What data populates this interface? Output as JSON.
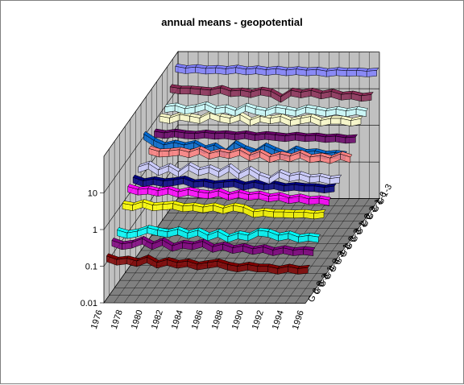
{
  "chart_data": {
    "type": "line",
    "title": "annual means - geopotential",
    "xlabel": "",
    "ylabel": "",
    "zlabel": "",
    "x_tick_labels": [
      "1976",
      "1978",
      "1980",
      "1982",
      "1984",
      "1986",
      "1988",
      "1990",
      "1992",
      "1994",
      "1996"
    ],
    "x": [
      1976,
      1977,
      1978,
      1979,
      1980,
      1981,
      1982,
      1983,
      1984,
      1985,
      1986,
      1987,
      1988,
      1989,
      1990,
      1991,
      1992,
      1993,
      1994,
      1995,
      1996
    ],
    "y_scale": "log",
    "ylim": [
      0.01,
      100
    ],
    "y_tick_labels": [
      "0.01",
      "0.1",
      "1",
      "10"
    ],
    "z_tick_labels": [
      "G 1-3",
      "G 1-6",
      "G 2-1",
      "G 2-3",
      "G 2-6",
      "G 3-1",
      "G 3-3",
      "G 3-6",
      "G 4-1",
      "G 4-3",
      "G 4-6",
      "G 6-1",
      "G 6-3",
      "G 6-6"
    ],
    "grid": true,
    "legend": "none",
    "series": [
      {
        "color": "#8080ff",
        "values": [
          50,
          45,
          48,
          44,
          46,
          43,
          47,
          42,
          45,
          41,
          44,
          40,
          43,
          40,
          42,
          38,
          41,
          39,
          40,
          38,
          40
        ]
      },
      {
        "color": "#8a2b55",
        "values": [
          22,
          20,
          20,
          19,
          18,
          21,
          17,
          18,
          16,
          19,
          17,
          12,
          18,
          16,
          18,
          15,
          17,
          14,
          15,
          13,
          14
        ]
      },
      {
        "color": "#ccffff",
        "values": [
          10,
          11,
          9,
          10,
          12,
          9,
          10,
          8,
          11,
          9,
          8,
          10,
          9,
          8,
          10,
          9,
          8,
          9,
          8,
          9,
          8
        ]
      },
      {
        "color": "#ffffcc",
        "values": [
          9,
          8,
          10,
          9,
          8,
          11,
          9,
          8,
          10,
          7,
          9,
          8,
          9,
          7,
          8,
          9,
          7,
          8,
          8,
          7,
          8
        ]
      },
      {
        "color": "#660066",
        "values": [
          5.5,
          5,
          5.5,
          5,
          4.8,
          5.2,
          4.8,
          5,
          4.6,
          5,
          4.4,
          4.8,
          4.5,
          4.2,
          4.6,
          4.2,
          4.4,
          4,
          4.2,
          3.8,
          4
        ]
      },
      {
        "color": "#ff8080",
        "values": [
          3,
          2.5,
          2.6,
          2.8,
          2.4,
          3,
          2.2,
          2.6,
          2.3,
          2.8,
          2,
          2.5,
          1.8,
          2.2,
          1.9,
          2.4,
          1.8,
          2,
          1.7,
          2.2,
          1.8
        ]
      },
      {
        "color": "#0066cc",
        "values": [
          12,
          8,
          6,
          7,
          6,
          7,
          5,
          6,
          4,
          7,
          5,
          4,
          6,
          4.5,
          3.5,
          5,
          4,
          4.2,
          3.6,
          3.8,
          3.5
        ]
      },
      {
        "color": "#ccccff",
        "values": [
          2.4,
          3,
          2,
          2.6,
          1.8,
          2.8,
          2,
          2.4,
          1.8,
          2.6,
          1.6,
          2.2,
          1.5,
          1.2,
          1.8,
          1.4,
          1.6,
          1.3,
          1.4,
          1.2,
          1.3
        ]
      },
      {
        "color": "#000080",
        "values": [
          2,
          1.6,
          1.8,
          1.6,
          1.7,
          1.9,
          1.5,
          1.6,
          1.4,
          1.5,
          1.6,
          1.3,
          1.5,
          1.3,
          1.4,
          1.2,
          1.3,
          1.2,
          1.2,
          1.1,
          1.2
        ]
      },
      {
        "color": "#ff00ff",
        "values": [
          1.8,
          1.5,
          1.6,
          1.4,
          1.6,
          1.3,
          1.5,
          1.3,
          1.2,
          1.4,
          1.1,
          1.3,
          1.1,
          1.2,
          1.0,
          1.1,
          0.9,
          1.0,
          0.85,
          0.9,
          0.8
        ]
      },
      {
        "color": "#ffff00",
        "values": [
          1.0,
          0.9,
          1.1,
          0.9,
          0.95,
          1.0,
          0.85,
          0.9,
          0.8,
          0.9,
          0.75,
          0.9,
          0.8,
          0.6,
          0.65,
          0.6,
          0.6,
          0.58,
          0.6,
          0.55,
          0.6
        ]
      },
      {
        "color": "#00ffff",
        "values": [
          0.3,
          0.25,
          0.28,
          0.35,
          0.3,
          0.27,
          0.32,
          0.25,
          0.3,
          0.22,
          0.28,
          0.2,
          0.25,
          0.22,
          0.3,
          0.28,
          0.22,
          0.25,
          0.2,
          0.22,
          0.2
        ]
      },
      {
        "color": "#800080",
        "values": [
          0.25,
          0.2,
          0.22,
          0.28,
          0.2,
          0.26,
          0.18,
          0.22,
          0.2,
          0.24,
          0.17,
          0.2,
          0.16,
          0.18,
          0.15,
          0.17,
          0.14,
          0.16,
          0.14,
          0.15,
          0.14
        ]
      },
      {
        "color": "#800000",
        "values": [
          0.15,
          0.12,
          0.13,
          0.11,
          0.14,
          0.1,
          0.12,
          0.1,
          0.11,
          0.09,
          0.1,
          0.11,
          0.09,
          0.08,
          0.09,
          0.08,
          0.08,
          0.07,
          0.08,
          0.07,
          0.075
        ]
      }
    ]
  }
}
